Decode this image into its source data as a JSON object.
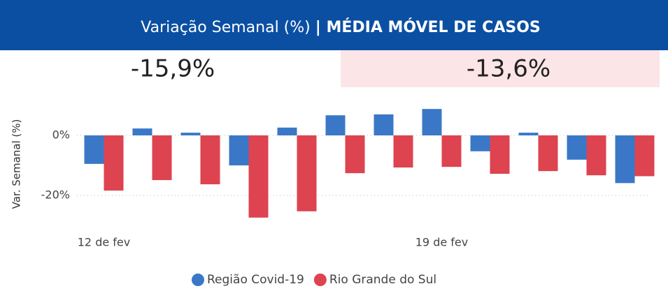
{
  "chart_data": {
    "type": "bar",
    "title": "Variação Semanal (%)",
    "title_bold": "| MÉDIA MÓVEL DE CASOS",
    "kpis": [
      "-15,9%",
      "-13,6%"
    ],
    "y_label": "Var. Semanal (%)",
    "categories": [
      "12 de fev",
      null,
      null,
      null,
      null,
      null,
      null,
      "19 de fev",
      null,
      null,
      null,
      null
    ],
    "series": [
      {
        "name": "Região Covid-19",
        "color": "#3a78c7",
        "values": [
          -9.5,
          2.3,
          0.9,
          -10.0,
          2.6,
          6.7,
          7.0,
          8.8,
          -5.3,
          0.9,
          -8.1,
          -15.9
        ]
      },
      {
        "name": "Rio Grande do Sul",
        "color": "#de4350",
        "values": [
          -18.4,
          -14.9,
          -16.3,
          -27.4,
          -25.3,
          -12.6,
          -10.7,
          -10.5,
          -12.8,
          -11.9,
          -13.3,
          -13.6
        ]
      }
    ],
    "ylim": [
      -28,
      10
    ],
    "yticks": [
      {
        "value": 0,
        "label": "0%"
      },
      {
        "value": -20,
        "label": "-20%"
      }
    ],
    "grid": true
  }
}
